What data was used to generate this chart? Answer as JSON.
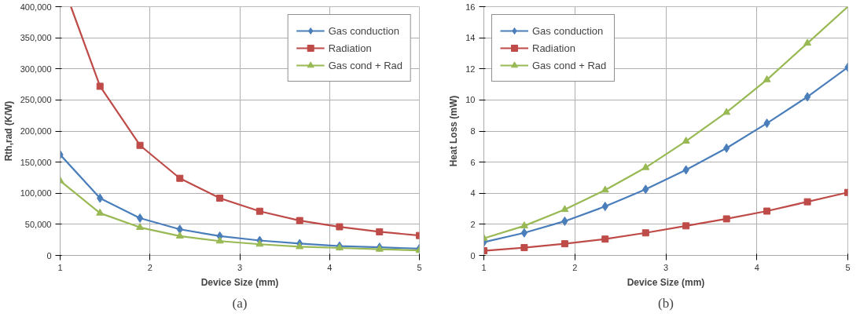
{
  "chart_data": [
    {
      "type": "line",
      "xlabel": "Device Size (mm)",
      "ylabel": "Rth,rad (K/W)",
      "annotations": [
        "(a)"
      ],
      "x": [
        1,
        1.444,
        1.889,
        2.333,
        2.778,
        3.222,
        3.667,
        4.111,
        4.556,
        5
      ],
      "xlim": [
        1,
        5
      ],
      "xticks": [
        1,
        2,
        3,
        4,
        5
      ],
      "ylim": [
        0,
        400000
      ],
      "yticks": [
        {
          "value": 0,
          "label": "0"
        },
        {
          "value": 50000,
          "label": "50,000"
        },
        {
          "value": 100000,
          "label": "100,000"
        },
        {
          "value": 150000,
          "label": "150,000"
        },
        {
          "value": 200000,
          "label": "200,000"
        },
        {
          "value": 250000,
          "label": "250,000"
        },
        {
          "value": 300000,
          "label": "300,000"
        },
        {
          "value": 350000,
          "label": "350,000"
        },
        {
          "value": 400000,
          "label": "400,000"
        }
      ],
      "grid": true,
      "legend": "top right",
      "series": [
        {
          "name": "Gas conduction",
          "color": "#4a7ebb",
          "marker": "diamond",
          "values": [
            162000,
            92000,
            60000,
            42000,
            31000,
            24000,
            19000,
            15000,
            13000,
            11000
          ]
        },
        {
          "name": "Radiation",
          "color": "#be4b48",
          "marker": "square",
          "x": [
            1.12,
            1.444,
            1.889,
            2.333,
            2.778,
            3.222,
            3.667,
            4.111,
            4.556,
            5
          ],
          "values": [
            400000,
            272000,
            177000,
            124000,
            92000,
            71000,
            56000,
            46000,
            38000,
            32000
          ]
        },
        {
          "name": "Gas cond + Rad",
          "color": "#98b954",
          "marker": "triangle",
          "values": [
            120000,
            68000,
            45000,
            31000,
            23000,
            18000,
            14000,
            12000,
            10000,
            8000
          ]
        }
      ]
    },
    {
      "type": "line",
      "xlabel": "Device Size (mm)",
      "ylabel": "Heat Loss (mW)",
      "annotations": [
        "(b)"
      ],
      "x": [
        1,
        1.444,
        1.889,
        2.333,
        2.778,
        3.222,
        3.667,
        4.111,
        4.556,
        5
      ],
      "xlim": [
        1,
        5
      ],
      "xticks": [
        1,
        2,
        3,
        4,
        5
      ],
      "ylim": [
        0,
        16
      ],
      "yticks": [
        0,
        2,
        4,
        6,
        8,
        10,
        12,
        14,
        16
      ],
      "grid": true,
      "legend": "top left",
      "series": [
        {
          "name": "Gas conduction",
          "color": "#4a7ebb",
          "marker": "diamond",
          "values": [
            0.85,
            1.45,
            2.2,
            3.15,
            4.25,
            5.5,
            6.9,
            8.5,
            10.2,
            12.1
          ]
        },
        {
          "name": "Radiation",
          "color": "#be4b48",
          "marker": "square",
          "values": [
            0.3,
            0.5,
            0.75,
            1.05,
            1.45,
            1.9,
            2.35,
            2.85,
            3.45,
            4.05
          ]
        },
        {
          "name": "Gas cond + Rad",
          "color": "#98b954",
          "marker": "triangle",
          "values": [
            1.1,
            1.9,
            2.95,
            4.2,
            5.65,
            7.35,
            9.2,
            11.3,
            13.65,
            16
          ]
        }
      ]
    }
  ]
}
